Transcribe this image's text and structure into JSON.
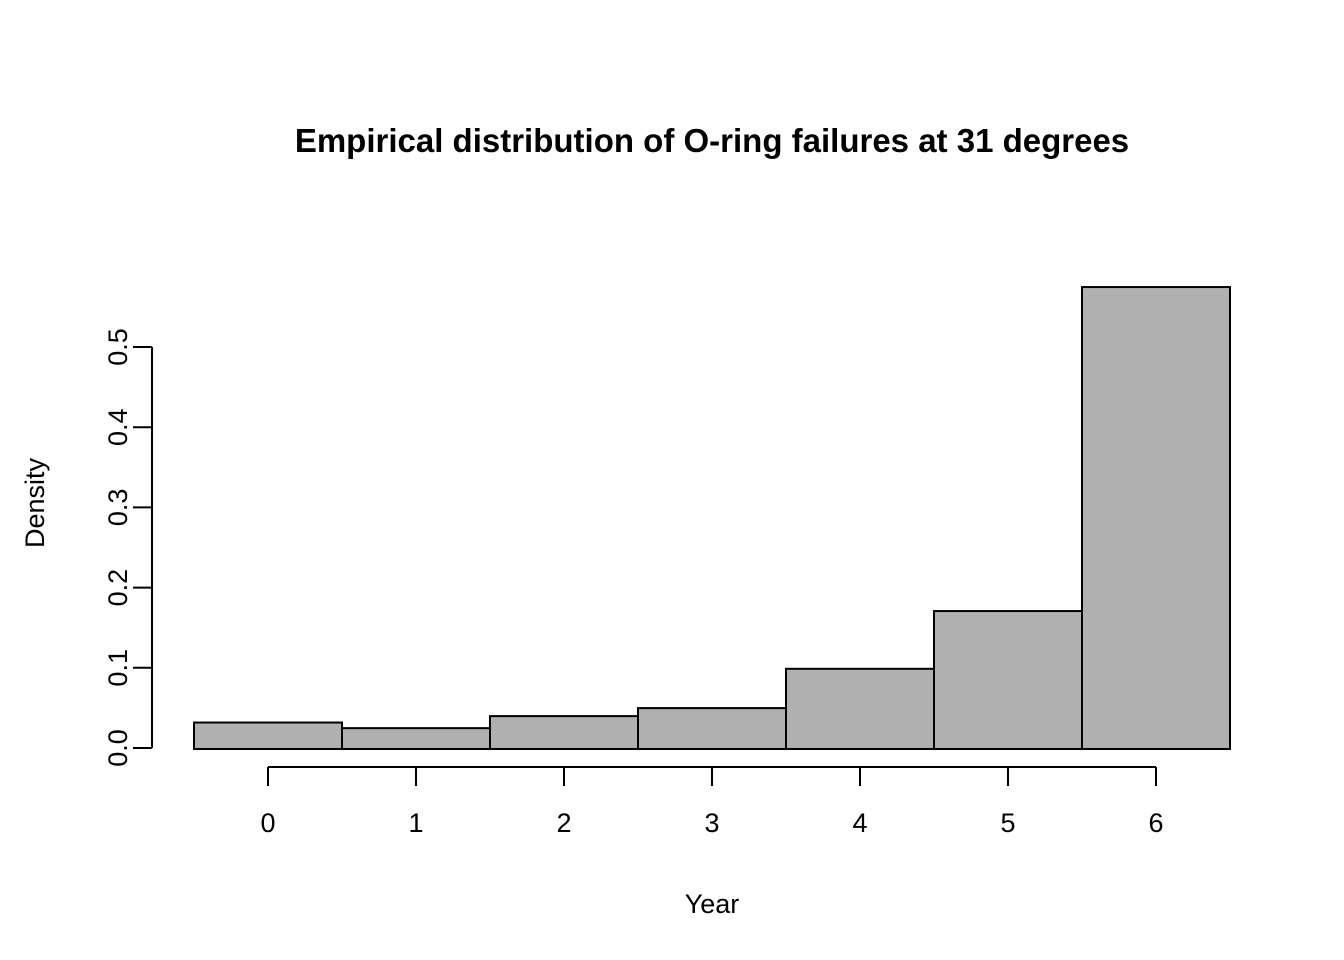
{
  "chart_data": {
    "type": "bar",
    "subtype": "histogram",
    "title": "Empirical distribution of O-ring failures at 31 degrees",
    "xlabel": "Year",
    "ylabel": "Density",
    "categories": [
      0,
      1,
      2,
      3,
      4,
      5,
      6
    ],
    "values": [
      0.033,
      0.026,
      0.041,
      0.051,
      0.1,
      0.172,
      0.576
    ],
    "bin_width": 1,
    "x_tick_labels": [
      "0",
      "1",
      "2",
      "3",
      "4",
      "5",
      "6"
    ],
    "y_tick_labels": [
      "0.0",
      "0.1",
      "0.2",
      "0.3",
      "0.4",
      "0.5"
    ],
    "y_tick_values": [
      0.0,
      0.1,
      0.2,
      0.3,
      0.4,
      0.5
    ],
    "xlim": [
      -0.5,
      6.5
    ],
    "ylim": [
      0.0,
      0.5
    ],
    "grid": false,
    "legend": null,
    "colors": {
      "bar_fill": "#b0b0b0",
      "bar_stroke": "#000000",
      "axis": "#000000",
      "text": "#000000",
      "background": "#ffffff"
    }
  }
}
